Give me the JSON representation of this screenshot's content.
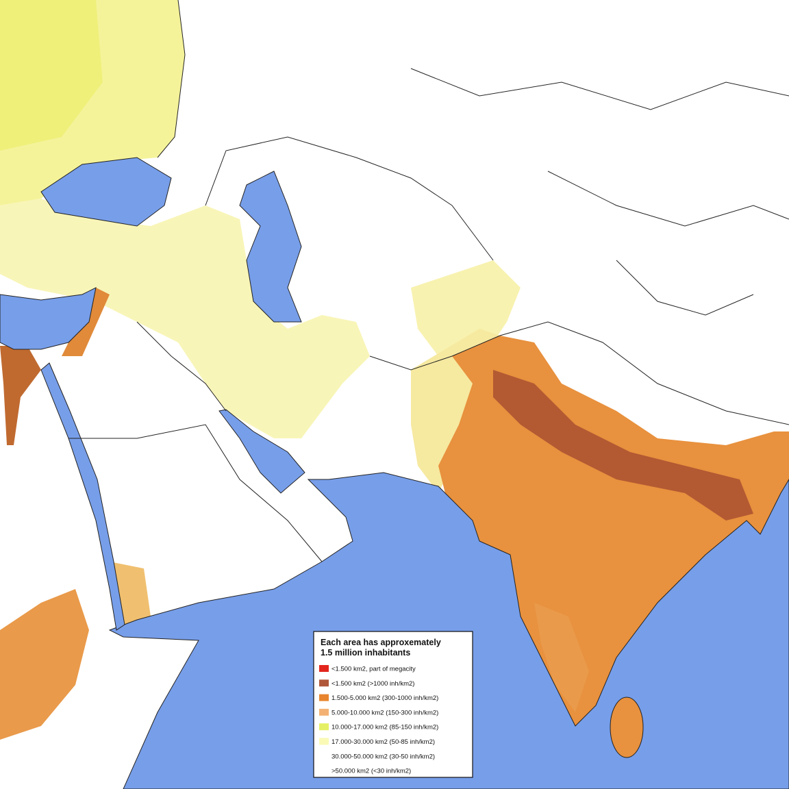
{
  "legend": {
    "title_lines": [
      "Each area has approxemately",
      "1.5 million inhabitants"
    ],
    "items": [
      {
        "label": "<1.500 km2, part of megacity",
        "color": "#e2261d"
      },
      {
        "label": "<1.500 km2 (>1000 inh/km2)",
        "color": "#b0573a"
      },
      {
        "label": "1.500-5.000 km2 (300-1000 inh/km2)",
        "color": "#e8852e"
      },
      {
        "label": "5.000-10.000 km2 (150-300 inh/km2)",
        "color": "#f3b274"
      },
      {
        "label": "10.000-17.000 km2 (85-150 inh/km2)",
        "color": "#e6f064"
      },
      {
        "label": "17.000-30.000 km2 (50-85 inh/km2)",
        "color": "#fafab6"
      },
      {
        "label": "30.000-50.000 km2 (30-50 inh/km2)",
        "color": "#ffffff"
      },
      {
        "label": ">50.000 km2 (<30 inh/km2)",
        "color": "#ffffff"
      }
    ]
  }
}
